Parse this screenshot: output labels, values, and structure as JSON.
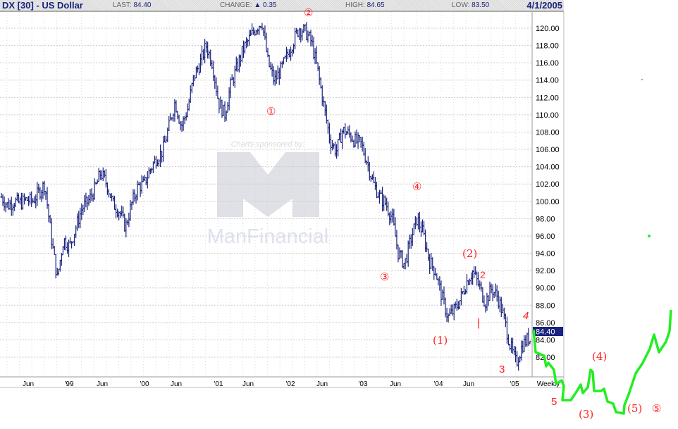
{
  "header": {
    "title": "DX [30] - US Dollar",
    "last_label": "LAST:",
    "last": "84.40",
    "change_label": "CHANGE:",
    "change": "0.35",
    "high_label": "HIGH:",
    "high": "84.65",
    "low_label": "LOW:",
    "low": "83.50",
    "date": "4/1/2005"
  },
  "watermark": {
    "sponsor": "Charts sponsored by:",
    "brand": "ManFinancial"
  },
  "colors": {
    "bars": "#1a237e",
    "projection": "#22ee22",
    "annotation": "#ff2222"
  },
  "chart_data": {
    "type": "line",
    "style": "weekly OHLC bars",
    "title": "DX [30] - US Dollar",
    "period_label": "Weekly",
    "ylim": [
      80.5,
      122.5
    ],
    "y_ticks": [
      "82.00",
      "84.00",
      "86.00",
      "88.00",
      "90.00",
      "92.00",
      "94.00",
      "96.00",
      "98.00",
      "100.00",
      "102.00",
      "104.00",
      "106.00",
      "108.00",
      "110.00",
      "112.00",
      "114.00",
      "116.00",
      "118.00",
      "120.00"
    ],
    "last_value_tag": "84.40",
    "x_ticks": [
      "Jun",
      "'99",
      "Jun",
      "'00",
      "Jun",
      "'01",
      "Jun",
      "'02",
      "Jun",
      "'03",
      "Jun",
      "'04",
      "Jun",
      "'05",
      "Weekly"
    ],
    "grid": true,
    "monthly_closes": {
      "start": "1998-01",
      "values": [
        100.5,
        99.5,
        100,
        99.8,
        100.2,
        100,
        101,
        102,
        96,
        91.1,
        95.6,
        94.8,
        97,
        99.2,
        100,
        101.3,
        103.3,
        102,
        99.7,
        98.9,
        97,
        99.7,
        101.7,
        102,
        103.7,
        105,
        105.8,
        108.6,
        111.5,
        108.6,
        110.6,
        114.3,
        115.9,
        118,
        116,
        111.5,
        110,
        113.5,
        115.5,
        117.6,
        118.8,
        120,
        120.8,
        116,
        113.9,
        115.1,
        116.7,
        118.4,
        120,
        119.6,
        118.4,
        115.1,
        111,
        107,
        105.8,
        108.2,
        107.8,
        107,
        106.6,
        104.5,
        102,
        100.5,
        99.7,
        98,
        94,
        92.7,
        95.6,
        98,
        96.3,
        93.1,
        91.9,
        89,
        86.6,
        87.4,
        88.7,
        90.7,
        91.9,
        90.3,
        88.3,
        89.9,
        89,
        86.6,
        83.4,
        81.3,
        83.4,
        84.2,
        83.4,
        84.6
      ]
    },
    "annotations": [
      "②",
      "①",
      "④",
      "③",
      "(2)",
      "2",
      "|",
      "(1)",
      "4",
      "3",
      "5",
      "(4)",
      "(3)",
      "(5)",
      "⑤"
    ]
  }
}
